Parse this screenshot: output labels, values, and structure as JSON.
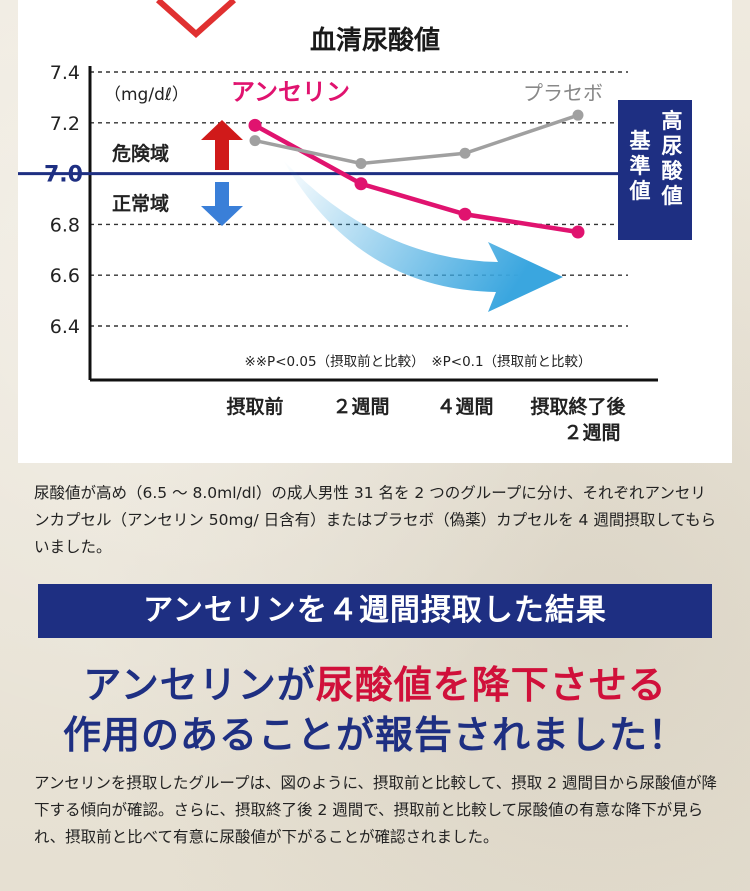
{
  "chart_data": {
    "type": "line",
    "title": "血清尿酸値",
    "unit_label": "（mg/dℓ）",
    "categories": [
      "摂取前",
      "２週間",
      "４週間",
      "摂取終了後\n２週間"
    ],
    "category_lines": [
      [
        "摂取前"
      ],
      [
        "２週間"
      ],
      [
        "４週間"
      ],
      [
        "摂取終了後",
        "２週間"
      ]
    ],
    "y_ticks": [
      "6.4",
      "6.6",
      "6.8",
      "7.0",
      "7.2",
      "7.4"
    ],
    "ylim": [
      6.4,
      7.4
    ],
    "reference_line": {
      "value": 7.0,
      "label": "7.0",
      "box_label_col1": "高尿酸値",
      "box_label_col2": "基準値"
    },
    "zone_labels": {
      "upper": "危険域",
      "lower": "正常域"
    },
    "series": [
      {
        "name": "アンセリン",
        "values": [
          7.19,
          6.96,
          6.84,
          6.77
        ],
        "color": "#e0136f"
      },
      {
        "name": "プラセボ",
        "values": [
          7.13,
          7.04,
          7.08,
          7.23
        ],
        "color": "#a0a0a0"
      }
    ],
    "note": "※※P<0.05（摂取前と比較）　※P<0.1（摂取前と比較）",
    "grid": true
  },
  "colors": {
    "navy": "#1e2f82",
    "red": "#d0103a",
    "pink": "#e0136f",
    "gray": "#a0a0a0",
    "arrow_up": "#d01a1a",
    "arrow_down": "#3a7fd8",
    "trend": "#3aa6df"
  },
  "text": {
    "para1": "尿酸値が高め（6.5 ～ 8.0ml/dl）の成人男性 31 名を 2 つのグループに分け、それぞれアンセリンカプセル（アンセリン 50mg/ 日含有）またはプラセボ（偽薬）カプセルを 4 週間摂取してもらいました。",
    "banner": "アンセリンを４週間摂取した結果",
    "headline_blue1": "アンセリンが",
    "headline_red": "尿酸値を降下させる",
    "headline_blue2": "作用のあることが報告されました！",
    "para2": "アンセリンを摂取したグループは、図のように、摂取前と比較して、摂取 2 週間目から尿酸値が降下する傾向が確認。さらに、摂取終了後 2 週間で、摂取前と比較して尿酸値の有意な降下が見られ、摂取前と比べて有意に尿酸値が下がることが確認されました。"
  }
}
